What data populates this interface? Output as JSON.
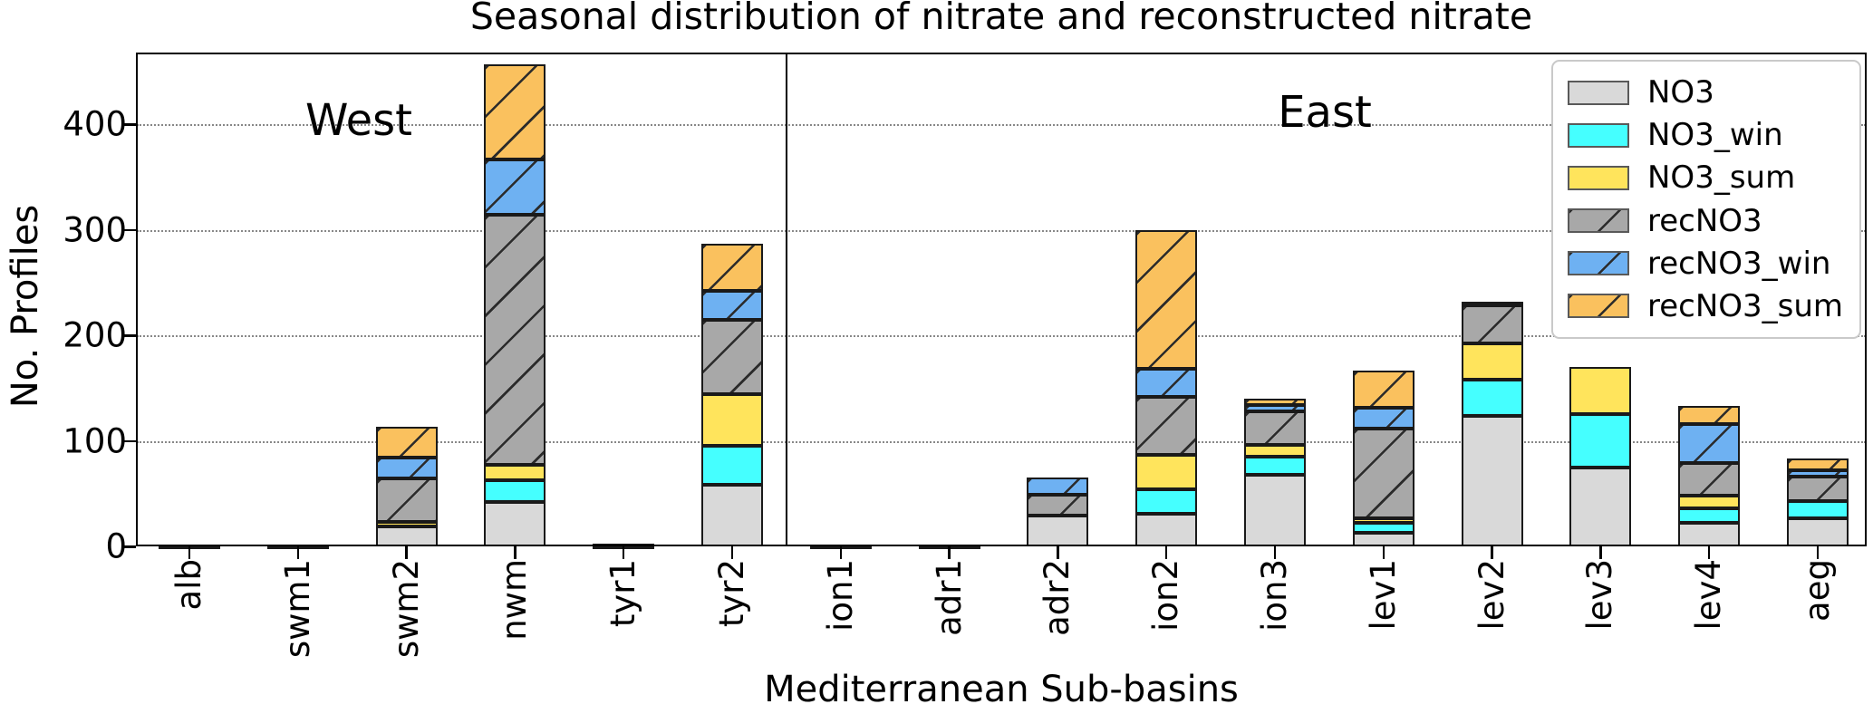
{
  "title": "Seasonal distribution of nitrate and reconstructed nitrate",
  "ylabel": "No. Profiles",
  "xlabel": "Mediterranean Sub-basins",
  "regions": {
    "west": "West",
    "east": "East"
  },
  "edge_color": "#1a1a1a",
  "chart_data": {
    "type": "bar",
    "stacked": true,
    "title": "Seasonal distribution of nitrate and reconstructed nitrate",
    "xlabel": "Mediterranean Sub-basins",
    "ylabel": "No. Profiles",
    "ylim": [
      0,
      468
    ],
    "yticks": [
      0,
      100,
      200,
      300,
      400
    ],
    "grid": "horizontal-dotted",
    "legend_position": "upper right",
    "categories": [
      "alb",
      "swm1",
      "swm2",
      "nwm",
      "tyr1",
      "tyr2",
      "ion1",
      "adr1",
      "adr2",
      "ion2",
      "ion3",
      "lev1",
      "lev2",
      "lev3",
      "lev4",
      "aeg"
    ],
    "region_split": {
      "west": [
        "alb",
        "swm1",
        "swm2",
        "nwm",
        "tyr1",
        "tyr2"
      ],
      "east": [
        "ion1",
        "adr1",
        "adr2",
        "ion2",
        "ion3",
        "lev1",
        "lev2",
        "lev3",
        "lev4",
        "aeg"
      ]
    },
    "series": [
      {
        "name": "NO3",
        "color": "#d9d9d9",
        "hatch": false,
        "values": [
          1,
          1,
          19,
          42,
          1,
          58,
          0,
          0,
          29,
          31,
          68,
          13,
          124,
          75,
          22,
          27
        ]
      },
      {
        "name": "NO3_win",
        "color": "#45ffff",
        "hatch": false,
        "values": [
          0,
          0,
          0,
          21,
          0,
          37,
          0,
          0,
          0,
          23,
          17,
          9,
          34,
          50,
          14,
          16
        ]
      },
      {
        "name": "NO3_sum",
        "color": "#ffe45c",
        "hatch": false,
        "values": [
          0,
          0,
          4,
          14,
          0,
          49,
          0,
          0,
          0,
          33,
          11,
          5,
          34,
          45,
          12,
          0
        ]
      },
      {
        "name": "recNO3",
        "color": "#a8a8a8",
        "hatch": true,
        "values": [
          1,
          0,
          41,
          237,
          2,
          71,
          1,
          1,
          20,
          55,
          32,
          85,
          36,
          0,
          31,
          23
        ]
      },
      {
        "name": "recNO3_win",
        "color": "#6eb1f2",
        "hatch": true,
        "values": [
          0,
          0,
          20,
          53,
          0,
          27,
          0,
          0,
          16,
          26,
          6,
          19,
          4,
          0,
          37,
          6
        ]
      },
      {
        "name": "recNO3_sum",
        "color": "#fac15e",
        "hatch": true,
        "values": [
          0,
          0,
          29,
          90,
          0,
          45,
          0,
          0,
          0,
          132,
          6,
          36,
          0,
          0,
          17,
          11
        ]
      }
    ],
    "totals": [
      2,
      1,
      113,
      457,
      3,
      287,
      1,
      1,
      65,
      300,
      140,
      167,
      232,
      170,
      133,
      83
    ]
  }
}
